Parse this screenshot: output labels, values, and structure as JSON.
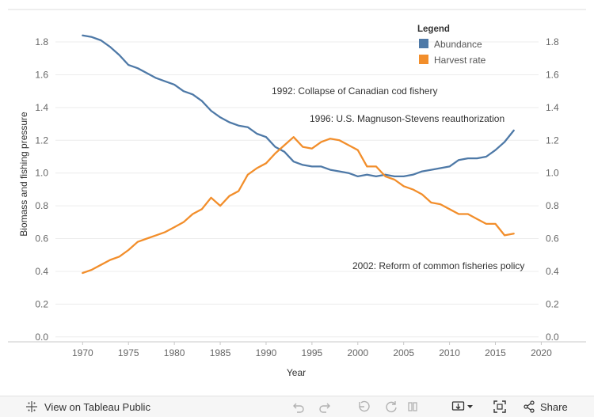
{
  "chart_data": {
    "type": "line",
    "xlabel": "Year",
    "ylabel": "Biomass and fishing pressure",
    "xlim": [
      1966,
      2021
    ],
    "ylim": [
      -0.03,
      1.95
    ],
    "x_ticks": [
      "1970",
      "1975",
      "1980",
      "1985",
      "1990",
      "1995",
      "2000",
      "2005",
      "2010",
      "2015",
      "2020"
    ],
    "y_ticks": [
      "0.0",
      "0.2",
      "0.4",
      "0.6",
      "0.8",
      "1.0",
      "1.2",
      "1.4",
      "1.6",
      "1.8"
    ],
    "legend_title": "Legend",
    "legend_position": "top-right",
    "grid": "horizontal",
    "series": [
      {
        "name": "Abundance",
        "color": "#4e79a7",
        "x": [
          1970,
          1971,
          1972,
          1973,
          1974,
          1975,
          1976,
          1977,
          1978,
          1979,
          1980,
          1981,
          1982,
          1983,
          1984,
          1985,
          1986,
          1987,
          1988,
          1989,
          1990,
          1991,
          1992,
          1993,
          1994,
          1995,
          1996,
          1997,
          1998,
          1999,
          2000,
          2001,
          2002,
          2003,
          2004,
          2005,
          2006,
          2007,
          2008,
          2009,
          2010,
          2011,
          2012,
          2013,
          2014,
          2015,
          2016,
          2017
        ],
        "values": [
          1.84,
          1.83,
          1.81,
          1.77,
          1.72,
          1.66,
          1.64,
          1.61,
          1.58,
          1.56,
          1.54,
          1.5,
          1.48,
          1.44,
          1.38,
          1.34,
          1.31,
          1.29,
          1.28,
          1.24,
          1.22,
          1.16,
          1.13,
          1.07,
          1.05,
          1.04,
          1.04,
          1.02,
          1.01,
          1.0,
          0.98,
          0.99,
          0.98,
          0.99,
          0.98,
          0.98,
          0.99,
          1.01,
          1.02,
          1.03,
          1.04,
          1.08,
          1.09,
          1.09,
          1.1,
          1.14,
          1.19,
          1.26
        ]
      },
      {
        "name": "Harvest rate",
        "color": "#f28e2b",
        "x": [
          1970,
          1971,
          1972,
          1973,
          1974,
          1975,
          1976,
          1977,
          1978,
          1979,
          1980,
          1981,
          1982,
          1983,
          1984,
          1985,
          1986,
          1987,
          1988,
          1989,
          1990,
          1991,
          1992,
          1993,
          1994,
          1995,
          1996,
          1997,
          1998,
          1999,
          2000,
          2001,
          2002,
          2003,
          2004,
          2005,
          2006,
          2007,
          2008,
          2009,
          2010,
          2011,
          2012,
          2013,
          2014,
          2015,
          2016,
          2017
        ],
        "values": [
          0.39,
          0.41,
          0.44,
          0.47,
          0.49,
          0.53,
          0.58,
          0.6,
          0.62,
          0.64,
          0.67,
          0.7,
          0.75,
          0.78,
          0.85,
          0.8,
          0.86,
          0.89,
          0.99,
          1.03,
          1.06,
          1.12,
          1.17,
          1.22,
          1.16,
          1.15,
          1.19,
          1.21,
          1.2,
          1.17,
          1.14,
          1.04,
          1.04,
          0.98,
          0.96,
          0.92,
          0.9,
          0.87,
          0.82,
          0.81,
          0.78,
          0.75,
          0.75,
          0.72,
          0.69,
          0.69,
          0.62,
          0.63
        ]
      }
    ],
    "annotations": [
      "1992: Collapse of Canadian cod fishery",
      "1996: U.S. Magnuson-Stevens reauthorization",
      "2002: Reform of common fisheries policy"
    ]
  },
  "toolbar": {
    "view_label": "View on Tableau Public",
    "share_label": "Share",
    "view_icon": "tableau-logo-icon",
    "undo_icon": "undo-icon",
    "redo_icon": "redo-icon",
    "revert_icon": "revert-icon",
    "refresh_icon": "refresh-icon",
    "download_icon": "download-icon",
    "fullscreen_icon": "fullscreen-icon",
    "share_icon": "share-icon"
  }
}
